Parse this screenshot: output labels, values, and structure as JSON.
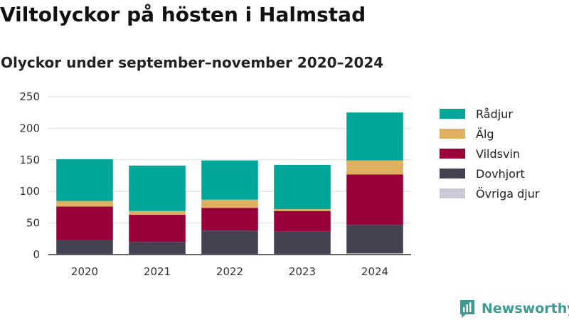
{
  "title": "Viltolyckor på hösten i Halmstad",
  "subtitle": "Olyckor under september–november 2020–2024",
  "brand": {
    "name": "Newsworthy",
    "icon": "newsworthy-logo-icon",
    "color": "#3d9b93"
  },
  "chart_data": {
    "type": "bar",
    "stacked": true,
    "title": "",
    "xlabel": "",
    "ylabel": "",
    "categories": [
      "2020",
      "2021",
      "2022",
      "2023",
      "2024"
    ],
    "ylim": [
      0,
      250
    ],
    "yticks": [
      0,
      50,
      100,
      150,
      200,
      250
    ],
    "grid": true,
    "legend_position": "right",
    "series": [
      {
        "name": "Övriga djur",
        "color": "#cdc8d6",
        "values": [
          1,
          1,
          1,
          1,
          2
        ]
      },
      {
        "name": "Dovhjort",
        "color": "#444150",
        "values": [
          22,
          19,
          37,
          36,
          45
        ]
      },
      {
        "name": "Vildsvin",
        "color": "#990039",
        "values": [
          53,
          43,
          36,
          32,
          80
        ]
      },
      {
        "name": "Älg",
        "color": "#dfb05f",
        "values": [
          9,
          6,
          13,
          3,
          22
        ]
      },
      {
        "name": "Rådjur",
        "color": "#00a69a",
        "values": [
          66,
          72,
          62,
          70,
          76
        ]
      }
    ]
  }
}
